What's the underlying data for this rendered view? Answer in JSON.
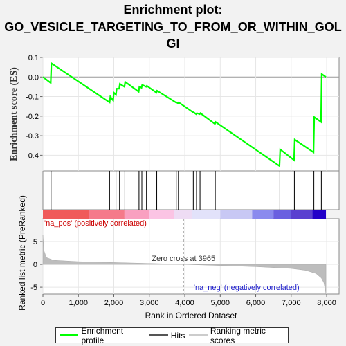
{
  "title_line1": "Enrichment plot:",
  "title_line2": "GO_VESICLE_TARGETING_TO_FROM_OR_WITHIN_GOL",
  "title_line3": "GI",
  "chart_data": {
    "type": "line",
    "title": "Enrichment plot: GO_VESICLE_TARGETING_TO_FROM_OR_WITHIN_GOLGI",
    "es_panel": {
      "ylabel": "Enrichment score (ES)",
      "ylim": [
        -0.48,
        0.1
      ],
      "yticks": [
        0.1,
        0.0,
        -0.1,
        -0.2,
        -0.3,
        -0.4
      ],
      "ytick_labels": [
        "0.1",
        "0.0",
        "-0.1",
        "-0.2",
        "-0.3",
        "-0.4"
      ],
      "line_color": "#00ff00",
      "series": {
        "name": "Enrichment profile",
        "x": [
          0,
          220,
          240,
          1880,
          1900,
          1980,
          2000,
          2060,
          2080,
          2150,
          2170,
          2300,
          2320,
          2700,
          2720,
          2780,
          2800,
          2910,
          2930,
          3200,
          3220,
          3750,
          3770,
          3810,
          3830,
          4230,
          4250,
          4320,
          4340,
          4420,
          4440,
          4850,
          4870,
          6670,
          6690,
          7080,
          7100,
          7630,
          7650,
          7840,
          7860,
          7980
        ],
        "y": [
          0.0,
          -0.03,
          0.07,
          -0.13,
          -0.1,
          -0.12,
          -0.08,
          -0.09,
          -0.06,
          -0.06,
          -0.035,
          -0.05,
          -0.025,
          -0.075,
          -0.05,
          -0.055,
          -0.04,
          -0.05,
          -0.045,
          -0.08,
          -0.07,
          -0.13,
          -0.13,
          -0.135,
          -0.13,
          -0.18,
          -0.18,
          -0.19,
          -0.185,
          -0.19,
          -0.185,
          -0.24,
          -0.23,
          -0.455,
          -0.37,
          -0.425,
          -0.32,
          -0.385,
          -0.205,
          -0.23,
          0.015,
          0.0
        ]
      }
    },
    "hits": [
      230,
      1880,
      1980,
      2060,
      2160,
      2310,
      2710,
      2790,
      2920,
      3210,
      3760,
      3820,
      4240,
      4330,
      4430,
      4860,
      6680,
      7090,
      7640,
      7850
    ],
    "ranked_panel": {
      "ylabel": "Ranked list metric (PreRanked)",
      "ylim": [
        -6.5,
        10
      ],
      "yticks": [
        5,
        0,
        -5
      ],
      "ytick_labels": [
        "5",
        "0",
        "-5"
      ],
      "metric_profile": {
        "x": [
          0,
          30,
          100,
          300,
          1000,
          2000,
          3000,
          3965,
          5000,
          6000,
          7000,
          7400,
          7700,
          7850,
          7920,
          7960,
          7980
        ],
        "y": [
          6.5,
          3.0,
          1.5,
          0.9,
          0.6,
          0.4,
          0.2,
          0.0,
          -0.25,
          -0.5,
          -0.9,
          -1.3,
          -2.0,
          -3.0,
          -4.0,
          -5.5,
          -6.5
        ]
      },
      "label_pos": "'na_pos' (positively correlated)",
      "label_neg": "'na_neg' (negatively correlated)",
      "zero_cross_label": "Zero cross at 3965",
      "zero_cross": 3965
    },
    "xaxis": {
      "xlabel": "Rank in Ordered Dataset",
      "xlim": [
        0,
        8350
      ],
      "xticks": [
        0,
        1000,
        2000,
        3000,
        4000,
        5000,
        6000,
        7000,
        8000
      ],
      "xtick_labels": [
        "0",
        "1,000",
        "2,000",
        "3,000",
        "4,000",
        "5,000",
        "6,000",
        "7,000",
        "8,000"
      ]
    },
    "colorbar": [
      {
        "from": 0,
        "to": 1300,
        "color": "#f05a5a"
      },
      {
        "from": 1300,
        "to": 2300,
        "color": "#f57a8a"
      },
      {
        "from": 2300,
        "to": 3000,
        "color": "#f9a0c0"
      },
      {
        "from": 3000,
        "to": 3700,
        "color": "#fbc4e4"
      },
      {
        "from": 3700,
        "to": 4200,
        "color": "#eedcf4"
      },
      {
        "from": 4200,
        "to": 5000,
        "color": "#e2e2fa"
      },
      {
        "from": 5000,
        "to": 5900,
        "color": "#c8c8f4"
      },
      {
        "from": 5900,
        "to": 6500,
        "color": "#8a8aee"
      },
      {
        "from": 6500,
        "to": 7000,
        "color": "#6a60e0"
      },
      {
        "from": 7000,
        "to": 7600,
        "color": "#5a40d0"
      },
      {
        "from": 7600,
        "to": 7980,
        "color": "#2200c8"
      }
    ],
    "legend": [
      {
        "label": "Enrichment profile",
        "color": "#00ff00"
      },
      {
        "label": "Hits",
        "color": "#555555"
      },
      {
        "label": "Ranking metric scores",
        "color": "#cccccc"
      }
    ]
  }
}
